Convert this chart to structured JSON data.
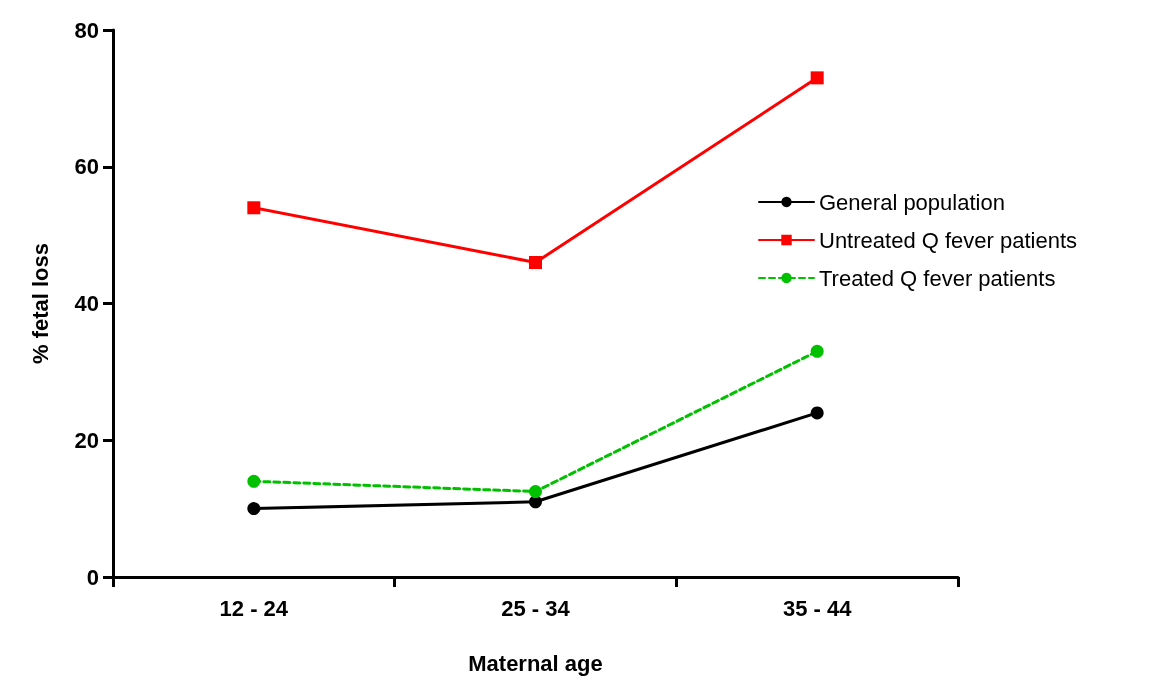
{
  "chart_data": {
    "type": "line",
    "xlabel": "Maternal age",
    "ylabel": "% fetal loss",
    "categories": [
      "12 - 24",
      "25 - 34",
      "35 - 44"
    ],
    "series": [
      {
        "name": "General population",
        "color": "#000000",
        "values": [
          10,
          11,
          24
        ],
        "marker": "circle",
        "line_style": "solid"
      },
      {
        "name": "Untreated Q fever patients",
        "color": "#ff0000",
        "values": [
          54,
          46,
          73
        ],
        "marker": "square",
        "line_style": "solid"
      },
      {
        "name": "Treated Q fever patients",
        "color": "#00c000",
        "values": [
          14,
          12.5,
          33
        ],
        "marker": "circle",
        "line_style": "dashed"
      }
    ],
    "ylim": [
      0,
      80
    ],
    "yticks": [
      0,
      20,
      40,
      60,
      80
    ],
    "grid": false,
    "legend": "right"
  }
}
